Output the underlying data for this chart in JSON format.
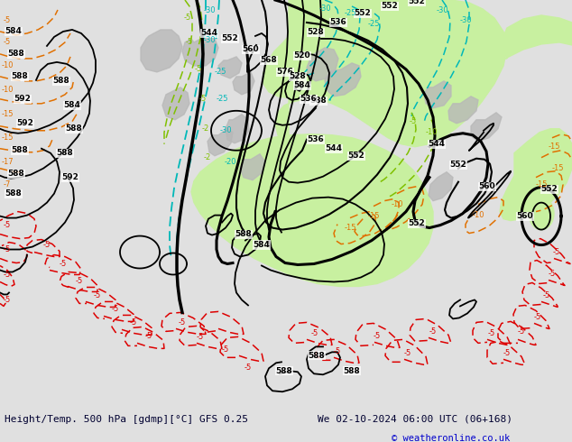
{
  "title_left": "Height/Temp. 500 hPa [gdmp][°C] GFS 0.25",
  "title_right": "We 02-10-2024 06:00 UTC (06+168)",
  "copyright": "© weatheronline.co.uk",
  "bg_color": "#f0f0f0",
  "green_fill": "#c8f0a0",
  "gray_fill": "#c0c0c0",
  "bottom_bar_color": "#e0e0e0",
  "figsize": [
    6.34,
    4.9
  ],
  "dpi": 100
}
